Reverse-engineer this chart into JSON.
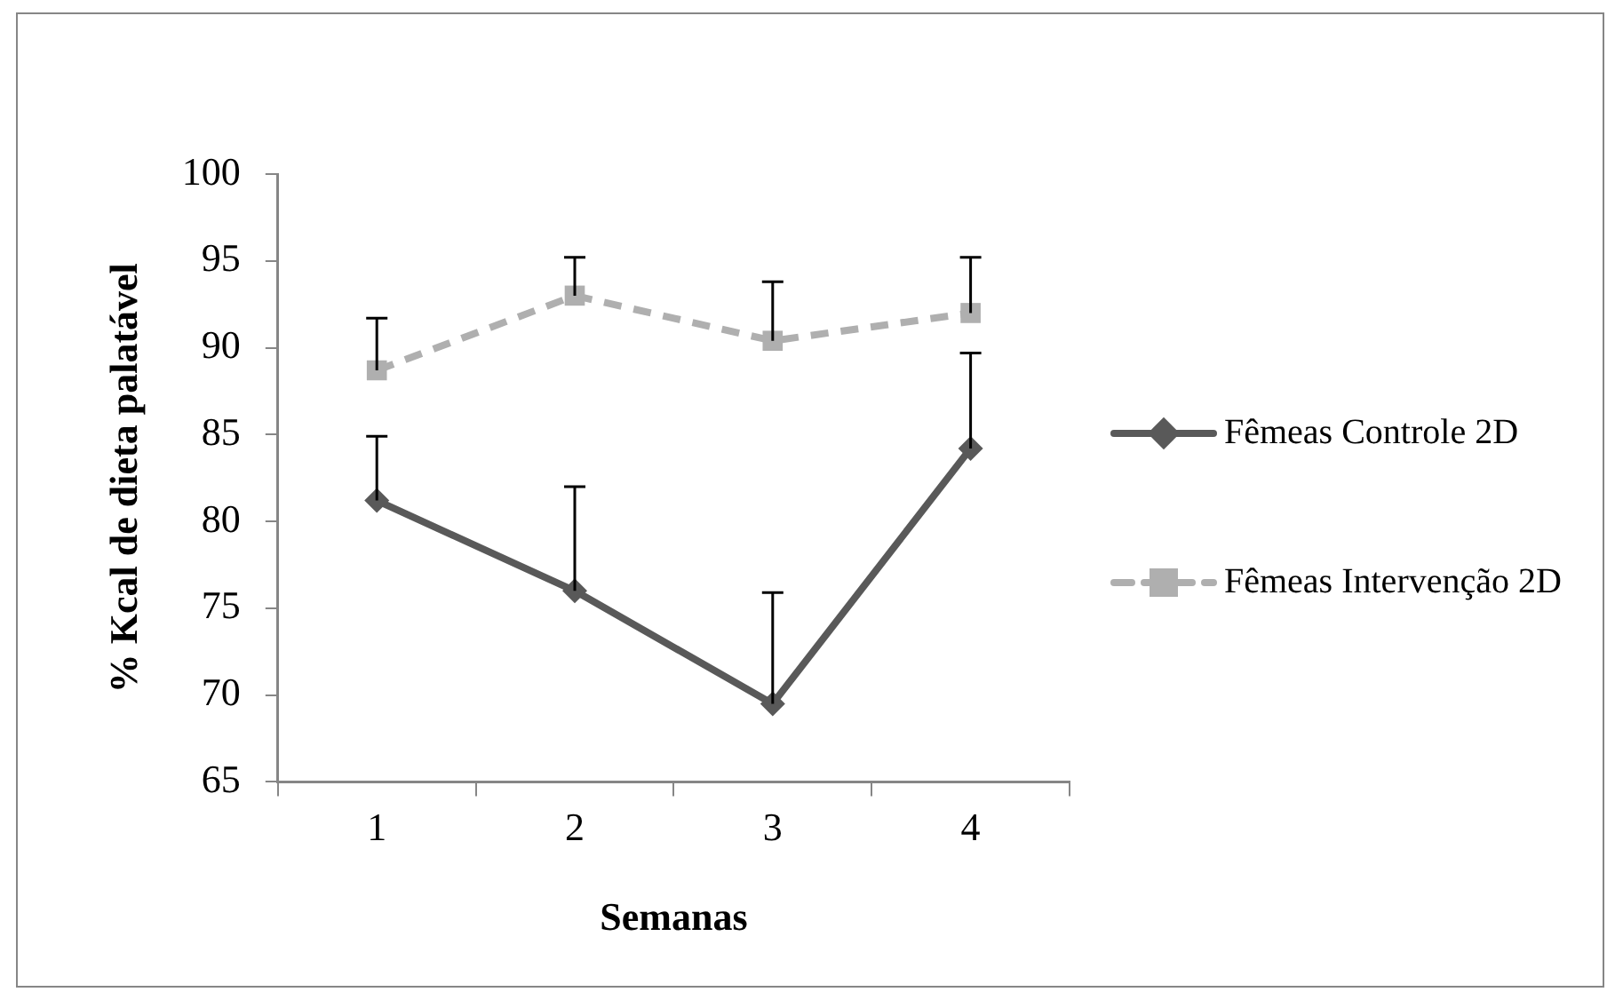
{
  "chart_data": {
    "type": "line",
    "xlabel": "Semanas",
    "ylabel": "% Kcal de dieta palatável",
    "categories": [
      "1",
      "2",
      "3",
      "4"
    ],
    "series": [
      {
        "name": "Fêmeas Controle 2D",
        "color": "#595959",
        "marker": "diamond",
        "line_style": "solid",
        "values": [
          81.2,
          76.0,
          69.5,
          84.2
        ],
        "errors": [
          [
            81.2,
            84.9
          ],
          [
            76.0,
            82.0
          ],
          [
            69.5,
            75.9
          ],
          [
            84.2,
            89.7
          ]
        ]
      },
      {
        "name": "Fêmeas Intervenção 2D",
        "color": "#afafaf",
        "marker": "square",
        "line_style": "dashed",
        "values": [
          88.7,
          93.0,
          90.4,
          92.0
        ],
        "errors": [
          [
            88.7,
            91.7
          ],
          [
            93.0,
            95.2
          ],
          [
            90.4,
            93.8
          ],
          [
            92.0,
            95.2
          ]
        ]
      }
    ],
    "ylim": [
      65,
      100
    ],
    "yticks": [
      65,
      70,
      75,
      80,
      85,
      90,
      95,
      100
    ],
    "grid": false,
    "legend": "right"
  }
}
